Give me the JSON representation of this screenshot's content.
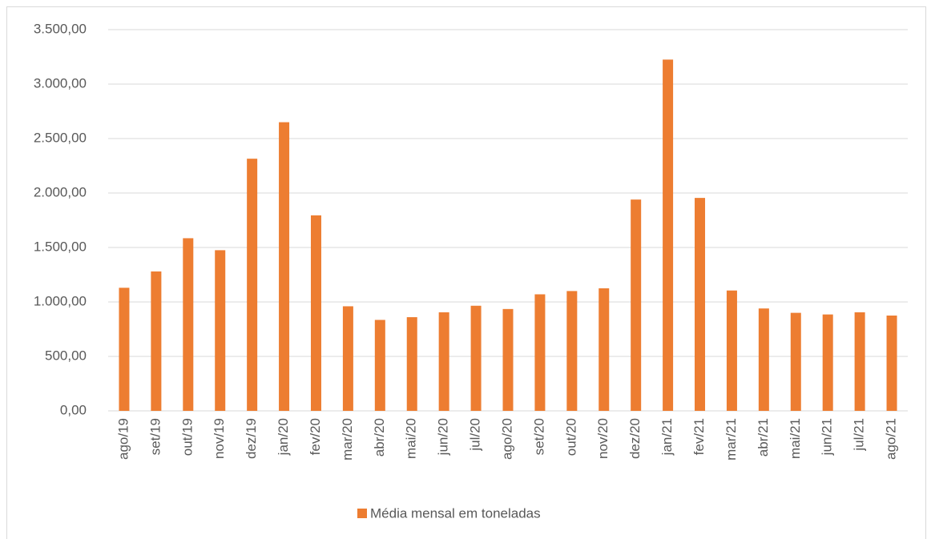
{
  "chart_data": {
    "type": "bar",
    "categories": [
      "ago/19",
      "set/19",
      "out/19",
      "nov/19",
      "dez/19",
      "jan/20",
      "fev/20",
      "mar/20",
      "abr/20",
      "mai/20",
      "jun/20",
      "jul/20",
      "ago/20",
      "set/20",
      "out/20",
      "nov/20",
      "dez/20",
      "jan/21",
      "fev/21",
      "mar/21",
      "abr/21",
      "mai/21",
      "jun/21",
      "jul/21",
      "ago/21"
    ],
    "series": [
      {
        "name": "Média mensal em toneladas",
        "color": "#ed7d31",
        "values": [
          1130,
          1280,
          1585,
          1475,
          2315,
          2650,
          1795,
          960,
          835,
          860,
          905,
          965,
          935,
          1070,
          1100,
          1125,
          1940,
          3225,
          1955,
          1105,
          940,
          900,
          885,
          905,
          875
        ]
      }
    ],
    "ylim": [
      0,
      3500
    ],
    "yticks": [
      {
        "value": 0,
        "label": "0,00"
      },
      {
        "value": 500,
        "label": "500,00"
      },
      {
        "value": 1000,
        "label": "1.000,00"
      },
      {
        "value": 1500,
        "label": "1.500,00"
      },
      {
        "value": 2000,
        "label": "2.000,00"
      },
      {
        "value": 2500,
        "label": "2.500,00"
      },
      {
        "value": 3000,
        "label": "3.000,00"
      },
      {
        "value": 3500,
        "label": "3.500,00"
      }
    ],
    "grid": true,
    "legend": "bottom"
  }
}
